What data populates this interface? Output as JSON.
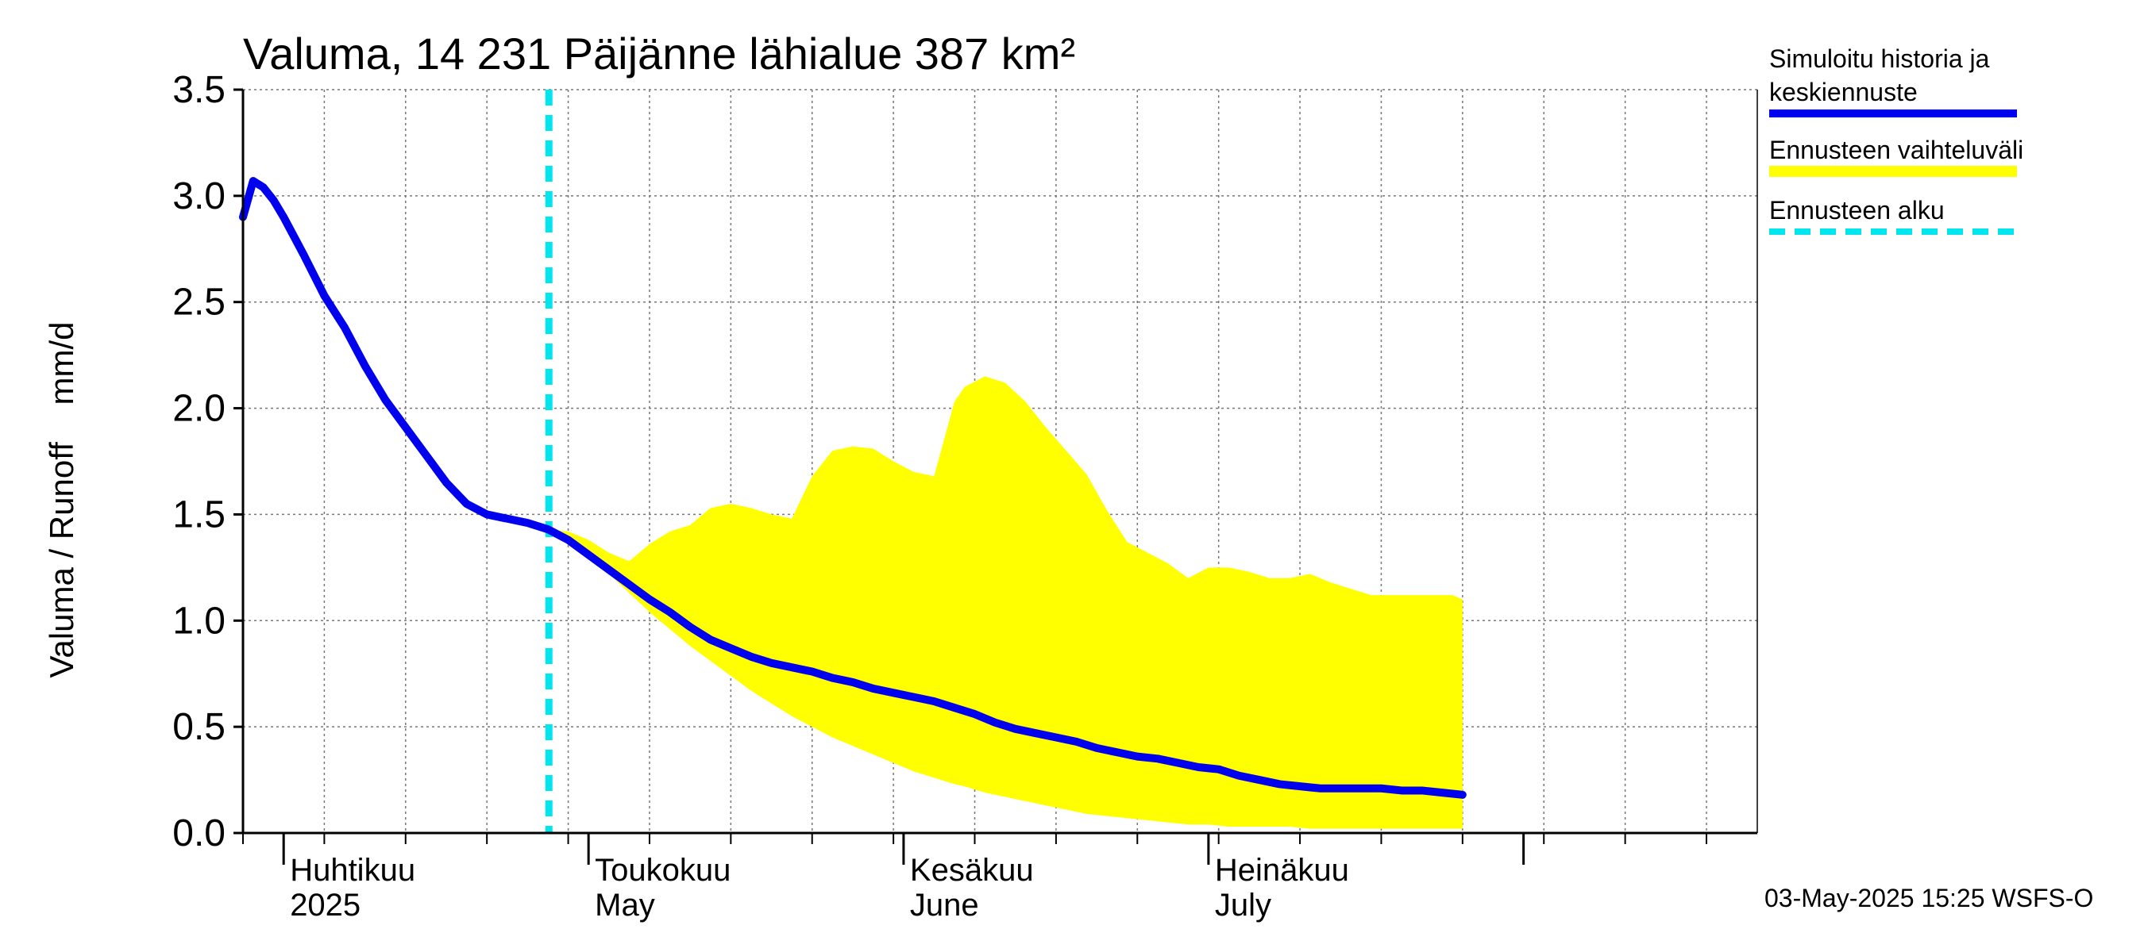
{
  "chart_data": {
    "type": "line",
    "title": "Valuma, 14 231 Päijänne lähialue 387 km²",
    "ylabel": "Valuma / Runoff    mm/d",
    "ylim": [
      0,
      3.5
    ],
    "y_ticks": [
      "0.0",
      "0.5",
      "1.0",
      "1.5",
      "2.0",
      "2.5",
      "3.0",
      "3.5"
    ],
    "x_start_date": "2025-03-28",
    "x_end_date": "2025-08-24",
    "month_labels": [
      {
        "fi": "Huhtikuu",
        "en": "2025",
        "day": 4
      },
      {
        "fi": "Toukokuu",
        "en": "May",
        "day": 34
      },
      {
        "fi": "Kesäkuu",
        "en": "June",
        "day": 65
      },
      {
        "fi": "Heinäkuu",
        "en": "July",
        "day": 95
      }
    ],
    "month_boundaries_day": [
      4,
      34,
      65,
      95,
      126
    ],
    "forecast_start_day": 30.1,
    "legend": [
      {
        "label_line1": "Simuloitu historia ja",
        "label_line2": "keskiennuste",
        "color": "#0000ee",
        "style": "solid"
      },
      {
        "label_line1": "Ennusteen vaihteluväli",
        "label_line2": "",
        "color": "#ffff00",
        "style": "band"
      },
      {
        "label_line1": "Ennusteen alku",
        "label_line2": "",
        "color": "#00e5ee",
        "style": "dashed"
      }
    ],
    "series": [
      {
        "name": "Simuloitu historia ja keskiennuste",
        "x": [
          0,
          1,
          2,
          3,
          4,
          6,
          8,
          10,
          12,
          14,
          16,
          18,
          20,
          22,
          24,
          26,
          28,
          30,
          32,
          34,
          36,
          38,
          40,
          42,
          44,
          46,
          48,
          50,
          52,
          54,
          56,
          58,
          60,
          62,
          64,
          66,
          68,
          70,
          72,
          74,
          76,
          78,
          80,
          82,
          84,
          86,
          88,
          90,
          92,
          94,
          96,
          98,
          100,
          102,
          104,
          106,
          108,
          110,
          112,
          114,
          116,
          118,
          120
        ],
        "values": [
          2.9,
          3.07,
          3.04,
          2.98,
          2.9,
          2.72,
          2.53,
          2.38,
          2.2,
          2.04,
          1.91,
          1.78,
          1.65,
          1.55,
          1.5,
          1.48,
          1.46,
          1.43,
          1.38,
          1.31,
          1.24,
          1.17,
          1.1,
          1.04,
          0.97,
          0.91,
          0.87,
          0.83,
          0.8,
          0.78,
          0.76,
          0.73,
          0.71,
          0.68,
          0.66,
          0.64,
          0.62,
          0.59,
          0.56,
          0.52,
          0.49,
          0.47,
          0.45,
          0.43,
          0.4,
          0.38,
          0.36,
          0.35,
          0.33,
          0.31,
          0.3,
          0.27,
          0.25,
          0.23,
          0.22,
          0.21,
          0.21,
          0.21,
          0.21,
          0.2,
          0.2,
          0.19,
          0.18
        ],
        "color": "#0000ee"
      }
    ],
    "band": {
      "name": "Ennusteen vaihteluväli",
      "x": [
        30,
        32,
        34,
        36,
        38,
        40,
        42,
        44,
        46,
        48,
        50,
        52,
        54,
        56,
        58,
        60,
        62,
        64,
        66,
        68,
        70,
        71,
        73,
        75,
        77,
        79,
        81,
        83,
        85,
        87,
        89,
        91,
        93,
        95,
        97,
        99,
        101,
        103,
        105,
        107,
        109,
        111,
        113,
        115,
        117,
        119,
        120
      ],
      "upper": [
        1.43,
        1.42,
        1.38,
        1.32,
        1.28,
        1.36,
        1.42,
        1.45,
        1.53,
        1.55,
        1.53,
        1.5,
        1.48,
        1.68,
        1.8,
        1.82,
        1.81,
        1.75,
        1.7,
        1.68,
        2.03,
        2.1,
        2.15,
        2.12,
        2.03,
        1.91,
        1.8,
        1.69,
        1.52,
        1.37,
        1.32,
        1.27,
        1.2,
        1.25,
        1.25,
        1.23,
        1.2,
        1.2,
        1.22,
        1.18,
        1.15,
        1.12,
        1.12,
        1.12,
        1.12,
        1.12,
        1.1
      ],
      "lower": [
        1.43,
        1.39,
        1.31,
        1.22,
        1.13,
        1.04,
        0.96,
        0.88,
        0.81,
        0.74,
        0.67,
        0.61,
        0.55,
        0.5,
        0.45,
        0.41,
        0.37,
        0.33,
        0.29,
        0.26,
        0.23,
        0.22,
        0.19,
        0.17,
        0.15,
        0.13,
        0.11,
        0.09,
        0.08,
        0.07,
        0.06,
        0.05,
        0.04,
        0.04,
        0.03,
        0.03,
        0.03,
        0.03,
        0.02,
        0.02,
        0.02,
        0.02,
        0.02,
        0.02,
        0.02,
        0.02,
        0.02
      ],
      "color": "#ffff00"
    },
    "timestamp": "03-May-2025 15:25 WSFS-O"
  }
}
